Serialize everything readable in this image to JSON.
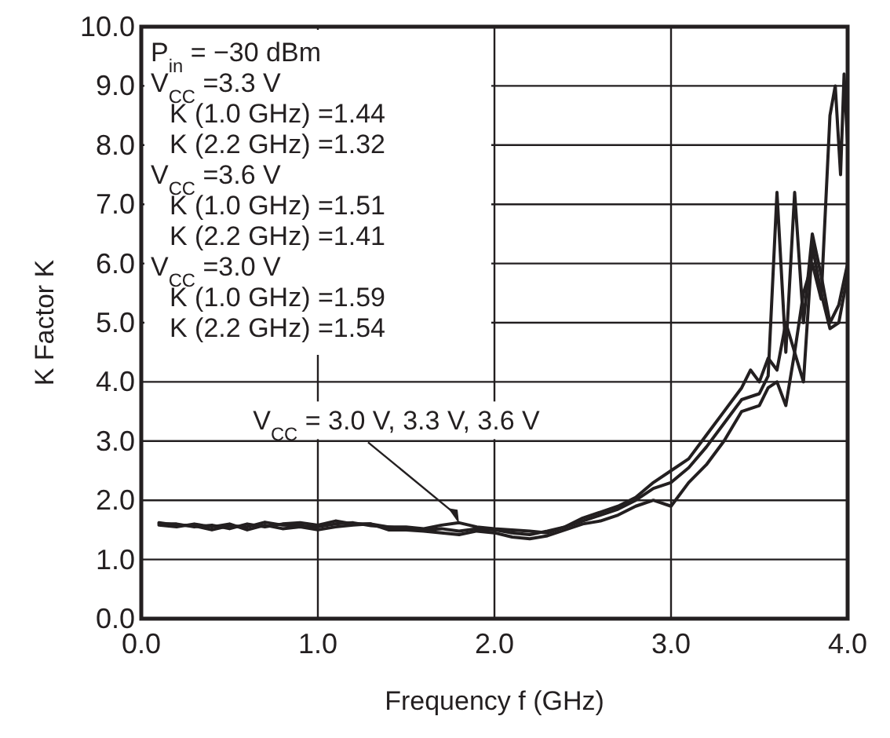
{
  "chart_data": {
    "type": "line",
    "xlabel": "Frequency  f (GHz)",
    "ylabel": "K Factor  K",
    "xlim": [
      0,
      4
    ],
    "ylim": [
      0,
      10
    ],
    "xticks": [
      {
        "value": 0,
        "label": "0.0"
      },
      {
        "value": 1,
        "label": "1.0"
      },
      {
        "value": 2,
        "label": "2.0"
      },
      {
        "value": 3,
        "label": "3.0"
      },
      {
        "value": 4,
        "label": "4.0"
      }
    ],
    "yticks": [
      {
        "value": 0,
        "label": "0.0"
      },
      {
        "value": 1,
        "label": "1.0"
      },
      {
        "value": 2,
        "label": "2.0"
      },
      {
        "value": 3,
        "label": "3.0"
      },
      {
        "value": 4,
        "label": "4.0"
      },
      {
        "value": 5,
        "label": "5.0"
      },
      {
        "value": 6,
        "label": "6.0"
      },
      {
        "value": 7,
        "label": "7.0"
      },
      {
        "value": 8,
        "label": "8.0"
      },
      {
        "value": 9,
        "label": "9.0"
      },
      {
        "value": 10,
        "label": "10.0"
      }
    ],
    "grid": true,
    "marker": "none",
    "line_style": "solid",
    "series": [
      {
        "color": "#231f20",
        "x": [
          0.1,
          0.2,
          0.3,
          0.4,
          0.5,
          0.6,
          0.7,
          0.8,
          0.9,
          1.0,
          1.1,
          1.2,
          1.3,
          1.4,
          1.5,
          1.6,
          1.7,
          1.8,
          1.9,
          2.0,
          2.1,
          2.2,
          2.3,
          2.4,
          2.5,
          2.6,
          2.7,
          2.8,
          2.9,
          3.0,
          3.1,
          3.2,
          3.3,
          3.4,
          3.45,
          3.5,
          3.55,
          3.6,
          3.65,
          3.7,
          3.75,
          3.8,
          3.85,
          3.9,
          3.93,
          3.96,
          3.98,
          4.0
        ],
        "values": [
          1.62,
          1.58,
          1.57,
          1.5,
          1.57,
          1.55,
          1.63,
          1.58,
          1.57,
          1.55,
          1.6,
          1.62,
          1.57,
          1.55,
          1.52,
          1.5,
          1.52,
          1.48,
          1.52,
          1.5,
          1.45,
          1.42,
          1.48,
          1.55,
          1.7,
          1.8,
          1.9,
          2.05,
          2.3,
          2.5,
          2.7,
          3.1,
          3.5,
          3.9,
          4.2,
          4.0,
          4.4,
          4.2,
          5.0,
          4.5,
          5.5,
          6.0,
          5.4,
          8.5,
          9.0,
          7.5,
          9.2,
          8.0
        ]
      },
      {
        "color": "#231f20",
        "x": [
          0.1,
          0.2,
          0.3,
          0.4,
          0.5,
          0.6,
          0.7,
          0.8,
          0.9,
          1.0,
          1.1,
          1.2,
          1.3,
          1.4,
          1.5,
          1.6,
          1.7,
          1.8,
          1.9,
          2.0,
          2.1,
          2.2,
          2.3,
          2.4,
          2.5,
          2.6,
          2.7,
          2.8,
          2.9,
          3.0,
          3.1,
          3.2,
          3.3,
          3.4,
          3.5,
          3.55,
          3.6,
          3.65,
          3.7,
          3.75,
          3.8,
          3.85,
          3.9,
          3.95,
          4.0
        ],
        "values": [
          1.6,
          1.6,
          1.55,
          1.58,
          1.52,
          1.6,
          1.55,
          1.6,
          1.62,
          1.58,
          1.65,
          1.6,
          1.6,
          1.55,
          1.55,
          1.52,
          1.58,
          1.62,
          1.55,
          1.52,
          1.5,
          1.48,
          1.45,
          1.55,
          1.65,
          1.75,
          1.85,
          2.0,
          2.2,
          2.3,
          2.55,
          2.9,
          3.3,
          3.7,
          3.8,
          4.1,
          7.2,
          4.5,
          7.2,
          5.0,
          6.5,
          5.8,
          5.0,
          5.3,
          6.0
        ]
      },
      {
        "color": "#231f20",
        "x": [
          0.1,
          0.2,
          0.3,
          0.4,
          0.5,
          0.6,
          0.7,
          0.8,
          0.9,
          1.0,
          1.1,
          1.2,
          1.3,
          1.4,
          1.5,
          1.6,
          1.7,
          1.8,
          1.9,
          2.0,
          2.1,
          2.2,
          2.3,
          2.4,
          2.5,
          2.6,
          2.7,
          2.8,
          2.9,
          3.0,
          3.1,
          3.2,
          3.3,
          3.4,
          3.5,
          3.55,
          3.6,
          3.65,
          3.7,
          3.75,
          3.8,
          3.85,
          3.9,
          3.95,
          4.0
        ],
        "values": [
          1.58,
          1.55,
          1.6,
          1.55,
          1.6,
          1.5,
          1.58,
          1.52,
          1.55,
          1.5,
          1.55,
          1.58,
          1.6,
          1.5,
          1.5,
          1.48,
          1.45,
          1.42,
          1.48,
          1.45,
          1.38,
          1.35,
          1.4,
          1.5,
          1.6,
          1.65,
          1.75,
          1.9,
          2.0,
          1.9,
          2.3,
          2.6,
          3.0,
          3.5,
          3.6,
          3.9,
          4.0,
          3.6,
          4.5,
          4.0,
          6.3,
          5.5,
          4.9,
          5.0,
          5.8
        ]
      }
    ],
    "annotations": [
      "P$_{in}$ = −30 dBm",
      "V$_{CC}$ =3.3 V",
      "K (1.0 GHz) =1.44",
      "K (2.2 GHz) =1.32",
      "V$_{CC}$ =3.6 V",
      "K (1.0 GHz) =1.51",
      "K (2.2 GHz) =1.41",
      "V$_{CC}$ =3.0 V",
      "K (1.0 GHz) =1.59",
      "K (2.2 GHz) =1.54",
      {
        "text": "V$_{CC}$ = 3.0 V, 3.3 V, 3.6 V",
        "x": 1.8,
        "y": 1.6
      }
    ]
  }
}
